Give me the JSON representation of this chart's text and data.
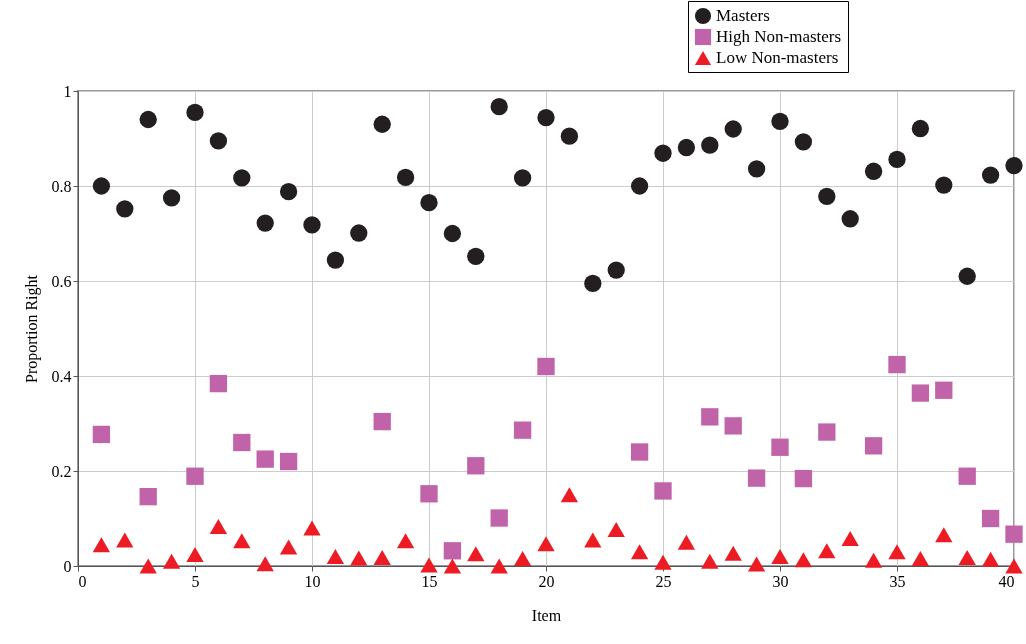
{
  "chart_data": {
    "type": "scatter",
    "xlabel": "Item",
    "ylabel": "Proportion Right",
    "x": [
      1,
      2,
      3,
      4,
      5,
      6,
      7,
      8,
      9,
      10,
      11,
      12,
      13,
      14,
      15,
      16,
      17,
      18,
      19,
      20,
      21,
      22,
      23,
      24,
      25,
      26,
      27,
      28,
      29,
      30,
      31,
      32,
      33,
      34,
      35,
      36,
      37,
      38,
      39,
      40
    ],
    "series": [
      {
        "name": "Masters",
        "color": "#231f20",
        "marker": "circle",
        "values": [
          0.8,
          0.752,
          0.94,
          0.775,
          0.955,
          0.895,
          0.817,
          0.722,
          0.788,
          0.718,
          0.644,
          0.701,
          0.93,
          0.818,
          0.765,
          0.7,
          0.652,
          0.967,
          0.817,
          0.944,
          0.905,
          0.595,
          0.623,
          0.8,
          0.869,
          0.881,
          0.886,
          0.92,
          0.836,
          0.936,
          0.893,
          0.778,
          0.731,
          0.831,
          0.856,
          0.921,
          0.802,
          0.61,
          0.823,
          0.843
        ]
      },
      {
        "name": "High Non-masters",
        "color": "#c063a8",
        "marker": "square",
        "values": [
          0.277,
          null,
          0.146,
          null,
          0.189,
          0.384,
          0.26,
          0.225,
          0.22,
          null,
          null,
          null,
          0.304,
          null,
          0.152,
          0.032,
          0.211,
          0.101,
          0.286,
          0.42,
          null,
          null,
          null,
          0.24,
          0.158,
          null,
          0.314,
          0.295,
          0.185,
          0.25,
          0.184,
          0.282,
          null,
          0.253,
          0.424,
          0.364,
          0.37,
          0.189,
          0.1,
          0.067
        ]
      },
      {
        "name": "Low Non-masters",
        "color": "#ed1c24",
        "marker": "triangle",
        "values": [
          0.045,
          0.055,
          0,
          0.01,
          0.024,
          0.083,
          0.053,
          0.005,
          0.04,
          0.08,
          0.02,
          0.017,
          0.018,
          0.053,
          0.002,
          0,
          0.026,
          0,
          0.016,
          0.047,
          0.15,
          0.055,
          0.077,
          0.03,
          0.008,
          0.05,
          0.01,
          0.027,
          0.004,
          0.02,
          0.013,
          0.032,
          0.058,
          0.012,
          0.03,
          0.016,
          0.066,
          0.018,
          0.014,
          0
        ]
      }
    ],
    "xlim": [
      0,
      40
    ],
    "xticks": [
      0,
      5,
      10,
      15,
      20,
      25,
      30,
      35,
      40
    ],
    "ylim": [
      0,
      1
    ],
    "yticks": [
      0,
      0.2,
      0.4,
      0.6,
      0.8,
      1
    ],
    "grid": true,
    "legend": "top right"
  }
}
